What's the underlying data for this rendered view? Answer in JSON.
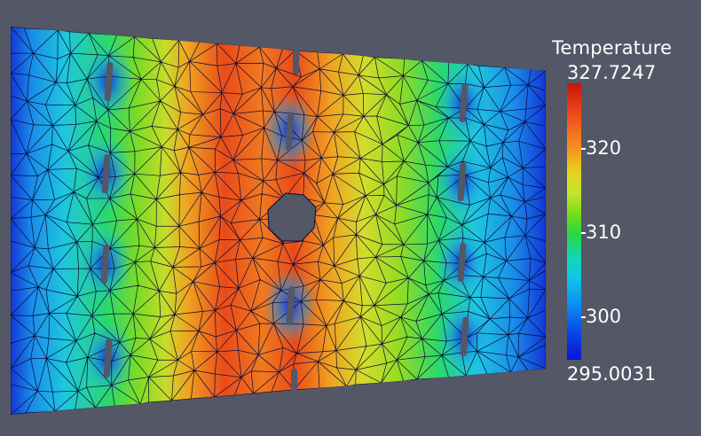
{
  "colorbar": {
    "title": "Temperature",
    "max_label": "327.7247",
    "min_label": "295.0031",
    "range": [
      295.0031,
      327.7247
    ],
    "ticks": [
      {
        "value": 320,
        "label": "320"
      },
      {
        "value": 310,
        "label": "310"
      },
      {
        "value": 300,
        "label": "300"
      }
    ]
  },
  "colors": {
    "background": "#535766",
    "mesh_edge": "#0a0a3a",
    "hole": "#535766",
    "cold": "#0a14d8",
    "hot": "#c8140a"
  }
}
